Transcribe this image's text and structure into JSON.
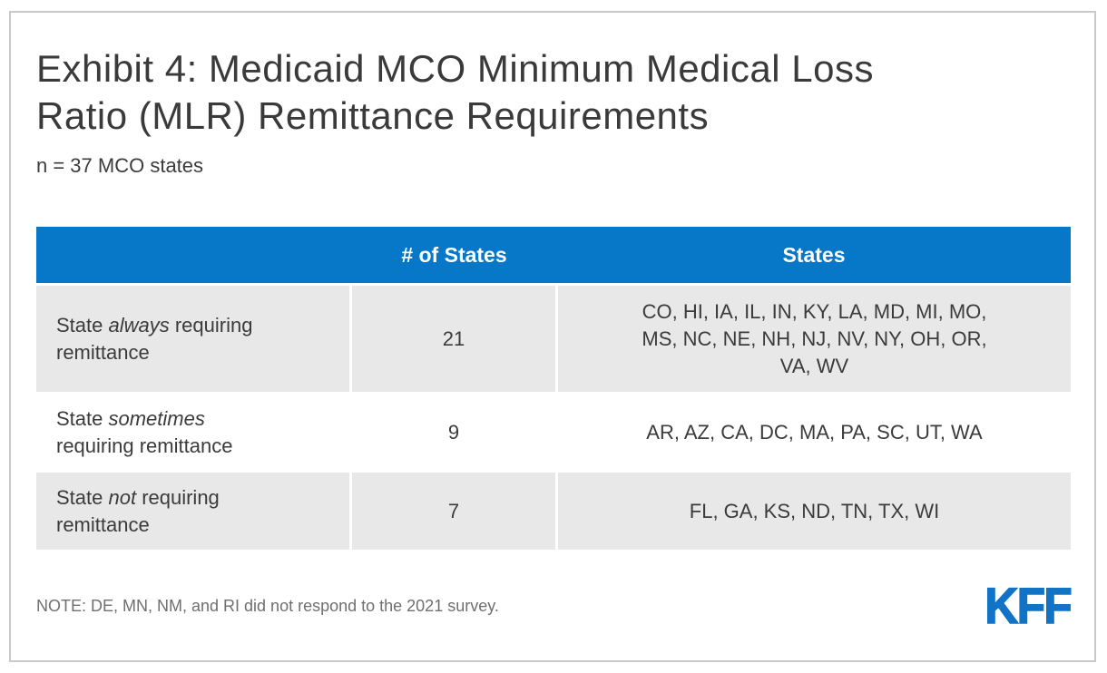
{
  "header": {
    "title": "Exhibit 4: Medicaid MCO Minimum Medical Loss Ratio (MLR) Remittance Requirements",
    "subtitle": "n = 37 MCO states"
  },
  "table": {
    "columns": [
      "",
      "# of States",
      "States"
    ],
    "rows": [
      {
        "label_prefix": "State ",
        "label_emphasis": "always",
        "label_suffix": " requiring remittance",
        "count": "21",
        "states": "CO, HI, IA, IL, IN, KY, LA, MD, MI, MO, MS, NC, NE, NH, NJ, NV, NY, OH, OR, VA, WV"
      },
      {
        "label_prefix": "State ",
        "label_emphasis": "sometimes",
        "label_suffix": " requiring remittance",
        "count": "9",
        "states": "AR, AZ, CA, DC, MA, PA, SC, UT, WA"
      },
      {
        "label_prefix": "State ",
        "label_emphasis": "not",
        "label_suffix": " requiring remittance",
        "count": "7",
        "states": "FL, GA, KS, ND, TN, TX, WI"
      }
    ]
  },
  "footer": {
    "note": "NOTE: DE, MN, NM, and RI did not respond to the 2021 survey.",
    "logo_text": "KFF"
  },
  "colors": {
    "header_blue": "#0777c8",
    "logo_blue": "#1173c5",
    "row_gray": "#e8e8e8",
    "body_text": "#3b3b3b",
    "note_gray": "#6f6f6f",
    "frame_border": "#c9c9c9"
  },
  "chart_data": {
    "type": "table",
    "title": "Exhibit 4: Medicaid MCO Minimum Medical Loss Ratio (MLR) Remittance Requirements",
    "subtitle": "n = 37 MCO states",
    "columns": [
      "",
      "# of States",
      "States"
    ],
    "rows": [
      [
        "State always requiring remittance",
        21,
        "CO, HI, IA, IL, IN, KY, LA, MD, MI, MO, MS, NC, NE, NH, NJ, NV, NY, OH, OR, VA, WV"
      ],
      [
        "State sometimes requiring remittance",
        9,
        "AR, AZ, CA, DC, MA, PA, SC, UT, WA"
      ],
      [
        "State not requiring remittance",
        7,
        "FL, GA, KS, ND, TN, TX, WI"
      ]
    ],
    "note": "NOTE: DE, MN, NM, and RI did not respond to the 2021 survey.",
    "source_logo": "KFF"
  }
}
